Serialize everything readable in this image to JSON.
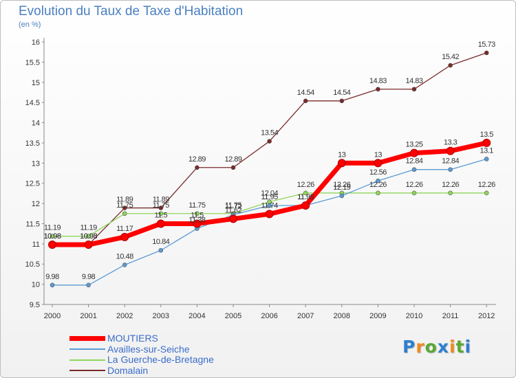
{
  "chart_data": {
    "type": "line",
    "title": "Evolution du Taux de Taxe d'Habitation",
    "subtitle": "(en %)",
    "xlabel": "",
    "ylabel": "",
    "x": [
      "2000",
      "2001",
      "2002",
      "2003",
      "2004",
      "2005",
      "2006",
      "2007",
      "2008",
      "2009",
      "2010",
      "2011",
      "2012"
    ],
    "ylim": [
      9.5,
      16
    ],
    "yticks": [
      "9.5",
      "10",
      "10.5",
      "11",
      "11.5",
      "12",
      "12.5",
      "13",
      "13.5",
      "14",
      "14.5",
      "15",
      "15.5",
      "16"
    ],
    "grid": false,
    "legend_position": "bottom-left",
    "series": [
      {
        "name": "MOUTIERS",
        "color": "#ff0000",
        "values": [
          10.98,
          10.98,
          11.17,
          11.5,
          11.5,
          11.62,
          11.74,
          11.95,
          13,
          13,
          13.25,
          13.3,
          13.5
        ],
        "labels": [
          "10.98",
          "10.98",
          "11.17",
          "11.5",
          "11.5",
          "11.62",
          "11.74",
          "11.95",
          "13",
          "13",
          "13.25",
          "13.3",
          "13.5"
        ]
      },
      {
        "name": "Availles-sur-Seiche",
        "color": "#5a9ad6",
        "values": [
          9.98,
          9.98,
          10.48,
          10.84,
          11.38,
          11.72,
          11.95,
          11.95,
          12.19,
          12.56,
          12.84,
          12.84,
          13.1
        ],
        "labels": [
          "9.98",
          "9.98",
          "10.48",
          "10.84",
          "11.38",
          "11.72",
          "11.95",
          "11.95",
          "12.19",
          "12.56",
          "12.84",
          "12.84",
          "13.1"
        ]
      },
      {
        "name": "La Guerche-de-Bretagne",
        "color": "#8ed65a",
        "values": [
          11.19,
          11.19,
          11.75,
          11.75,
          11.75,
          11.75,
          12.04,
          12.26,
          12.26,
          12.26,
          12.26,
          12.26,
          12.26
        ],
        "labels": [
          "11.19",
          "11.19",
          "11.75",
          "11.75",
          "11.75",
          "11.75",
          "12.04",
          "12.26",
          "12.26",
          "12.26",
          "12.26",
          "12.26",
          "12.26"
        ]
      },
      {
        "name": "Domalain",
        "color": "#7a2a2a",
        "values": [
          10.98,
          10.98,
          11.89,
          11.89,
          12.89,
          12.89,
          13.54,
          14.54,
          14.54,
          14.83,
          14.83,
          15.42,
          15.73
        ],
        "labels": [
          "10.98",
          "10.98",
          "11.89",
          "11.89",
          "12.89",
          "12.89",
          "13.54",
          "14.54",
          "14.54",
          "14.83",
          "14.83",
          "15.42",
          "15.73"
        ]
      }
    ]
  },
  "logo": {
    "letters": [
      "P",
      "r",
      "o",
      "x",
      "i",
      "t",
      "i"
    ],
    "colors": [
      "#2c7fd1",
      "#f08a1e",
      "#5aa832",
      "#2c7fd1",
      "#f08a1e",
      "#5aa832",
      "#2c7fd1"
    ]
  }
}
